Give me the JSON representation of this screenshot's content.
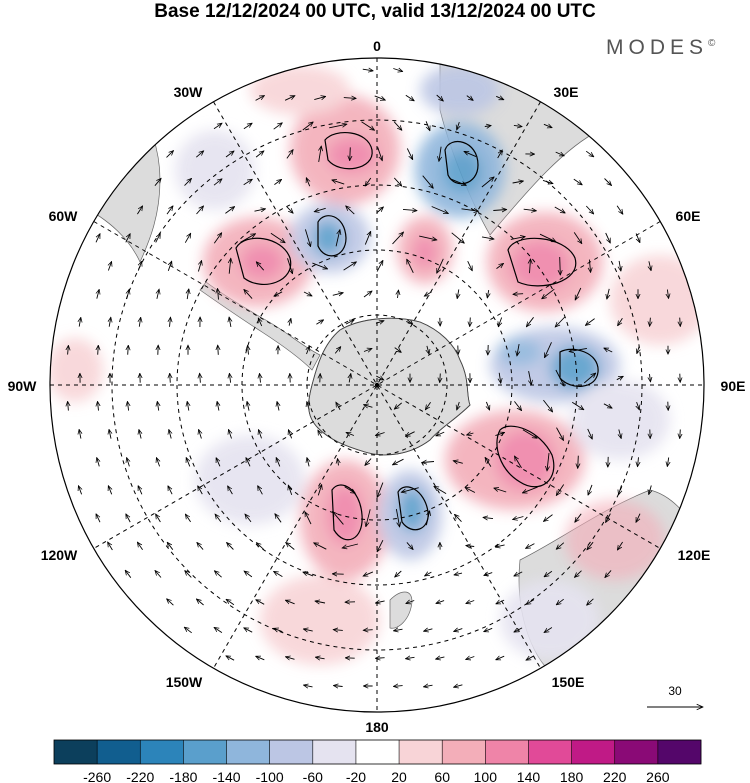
{
  "title": "Base 12/12/2024 00 UTC, valid 13/12/2024 00 UTC",
  "brand": {
    "name": "MODES",
    "mark": "©"
  },
  "map": {
    "projection": "south-polar-stereographic",
    "longitude_labels": [
      "0",
      "30E",
      "60E",
      "90E",
      "120E",
      "150E",
      "180",
      "150W",
      "120W",
      "90W",
      "60W",
      "30W"
    ],
    "latitude_circles_deg": [
      -30,
      -45,
      -60,
      -75
    ],
    "vector_reference": "30"
  },
  "legend": {
    "ticks": [
      "-260",
      "-220",
      "-180",
      "-140",
      "-100",
      "-60",
      "-20",
      "20",
      "60",
      "100",
      "140",
      "180",
      "220",
      "260"
    ],
    "colors": [
      "#0c3f5c",
      "#115e8f",
      "#2c84ba",
      "#5a9fcc",
      "#8fb6dc",
      "#bcc6e4",
      "#e5e3f0",
      "#ffffff",
      "#f8d4d7",
      "#f3aeb9",
      "#ef84a8",
      "#e14a98",
      "#c01a86",
      "#8a0a76",
      "#54066a"
    ]
  }
}
